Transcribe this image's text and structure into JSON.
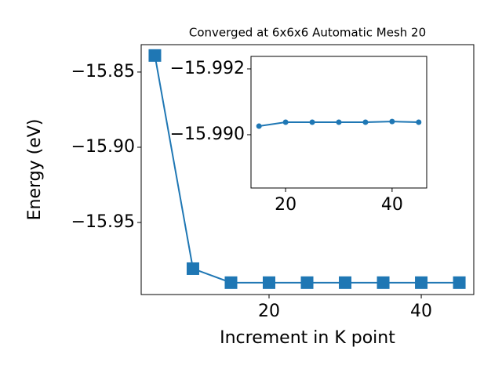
{
  "chart_data": [
    {
      "type": "line",
      "title": "Converged at 6x6x6 Automatic Mesh 20",
      "xlabel": "Increment in K point",
      "ylabel": "Energy (eV)",
      "x": [
        5,
        10,
        15,
        20,
        25,
        30,
        35,
        40,
        45
      ],
      "series": [
        {
          "name": "Energy",
          "color": "#1f77b4",
          "marker": "square",
          "values": [
            -15.839,
            -15.9807,
            -15.99,
            -15.99,
            -15.99,
            -15.99,
            -15.99,
            -15.99,
            -15.99
          ]
        }
      ],
      "xlim": [
        3.2,
        46.9
      ],
      "ylim": [
        -15.9979,
        -15.8318
      ],
      "xticks": [
        20,
        40
      ],
      "yticks": [
        {
          "value": -15.95,
          "label": "−15.95"
        },
        {
          "value": -15.9,
          "label": "−15.90"
        },
        {
          "value": -15.85,
          "label": "−15.85"
        }
      ]
    },
    {
      "type": "line",
      "x": [
        15,
        20,
        25,
        30,
        35,
        40,
        45
      ],
      "series": [
        {
          "name": "Energy",
          "color": "#1f77b4",
          "marker": "circle",
          "values": [
            -15.99026,
            -15.99038,
            -15.99038,
            -15.99038,
            -15.99038,
            -15.9904,
            -15.99038
          ]
        }
      ],
      "xlim": [
        13.5,
        46.5
      ],
      "ylim": [
        -15.98838,
        -15.99238
      ],
      "xticks": [
        20,
        40
      ],
      "yticks": [
        {
          "value": -15.99,
          "label": "−15.990"
        },
        {
          "value": -15.992,
          "label": "−15.992"
        }
      ]
    }
  ]
}
